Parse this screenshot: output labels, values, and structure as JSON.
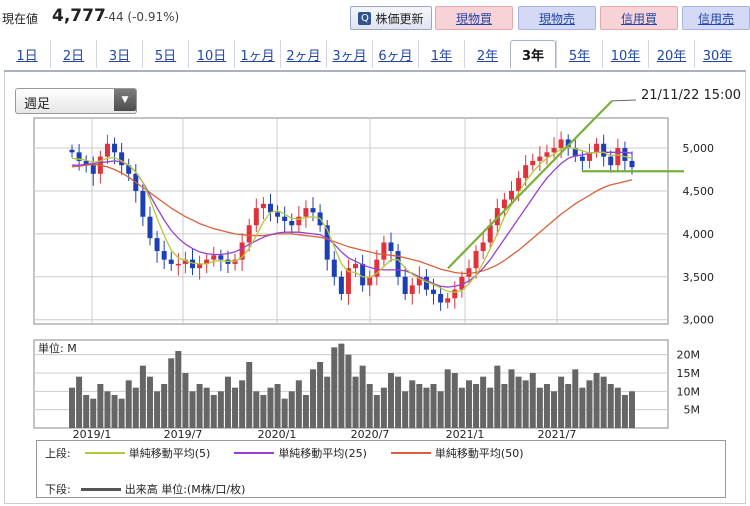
{
  "quote": {
    "label": "現在値",
    "price": "4,777",
    "change": "-44 (-0.91%)"
  },
  "toolbar": {
    "refresh": "株価更新",
    "buy1": "現物買",
    "sell1": "現物売",
    "buy2": "信用買",
    "sell2": "信用売"
  },
  "tabs": [
    "1日",
    "2日",
    "3日",
    "5日",
    "10日",
    "1ヶ月",
    "2ヶ月",
    "3ヶ月",
    "6ヶ月",
    "1年",
    "2年",
    "3年",
    "5年",
    "10年",
    "20年",
    "30年"
  ],
  "active_tab": "3年",
  "period_select": {
    "value": "週足"
  },
  "timestamp": "21/11/22 15:00",
  "colors": {
    "up": "#e0323b",
    "down": "#1d3fb5",
    "ma5": "#b6c83a",
    "ma25": "#9a3fd1",
    "ma50": "#d9603a",
    "trend": "#78b03c",
    "volume": "#666666"
  },
  "chart_data": [
    {
      "type": "candlestick",
      "x_ticks": [
        "2019/1",
        "2019/7",
        "2020/1",
        "2020/7",
        "2021/1",
        "2021/7"
      ],
      "y_ticks": [
        "3,000",
        "3,500",
        "4,000",
        "4,500",
        "5,000"
      ],
      "ylim": [
        2950,
        5350
      ],
      "grid": true,
      "close_series": [
        4950,
        4850,
        4800,
        4700,
        4900,
        5050,
        4950,
        4800,
        4700,
        4500,
        4200,
        3950,
        3800,
        3700,
        3650,
        3650,
        3700,
        3600,
        3650,
        3700,
        3750,
        3700,
        3650,
        3700,
        3900,
        4100,
        4300,
        4350,
        4250,
        4200,
        4150,
        4100,
        4200,
        4300,
        4250,
        4100,
        3700,
        3500,
        3300,
        3600,
        3650,
        3400,
        3500,
        3700,
        3900,
        3800,
        3500,
        3300,
        3400,
        3500,
        3350,
        3300,
        3200,
        3250,
        3350,
        3500,
        3600,
        3800,
        3900,
        4100,
        4300,
        4400,
        4500,
        4650,
        4800,
        4850,
        4900,
        4950,
        5000,
        5100,
        5000,
        4900,
        4850,
        4950,
        5050,
        4900,
        4800,
        5000,
        4850,
        4777
      ],
      "ma5": [
        4880,
        4870,
        4860,
        4830,
        4850,
        4880,
        4890,
        4850,
        4800,
        4720,
        4600,
        4400,
        4180,
        3980,
        3810,
        3720,
        3690,
        3660,
        3650,
        3650,
        3680,
        3690,
        3680,
        3680,
        3730,
        3830,
        3980,
        4140,
        4250,
        4270,
        4230,
        4180,
        4170,
        4190,
        4200,
        4180,
        4050,
        3850,
        3650,
        3560,
        3550,
        3500,
        3490,
        3540,
        3620,
        3700,
        3700,
        3600,
        3530,
        3480,
        3440,
        3410,
        3370,
        3330,
        3320,
        3340,
        3420,
        3520,
        3660,
        3830,
        4000,
        4200,
        4340,
        4480,
        4610,
        4720,
        4810,
        4880,
        4930,
        4990,
        5010,
        4990,
        4970,
        4940,
        4950,
        4950,
        4910,
        4920,
        4900,
        4880
      ],
      "ma25": [
        4800,
        4800,
        4810,
        4820,
        4830,
        4840,
        4850,
        4840,
        4800,
        4720,
        4600,
        4450,
        4300,
        4160,
        4040,
        3950,
        3880,
        3830,
        3790,
        3770,
        3760,
        3760,
        3770,
        3790,
        3830,
        3880,
        3920,
        3960,
        3990,
        4010,
        4020,
        4020,
        4020,
        4010,
        4000,
        3990,
        3950,
        3880,
        3790,
        3720,
        3680,
        3640,
        3610,
        3590,
        3580,
        3580,
        3580,
        3570,
        3540,
        3500,
        3460,
        3420,
        3390,
        3380,
        3390,
        3410,
        3450,
        3520,
        3600,
        3700,
        3820,
        3940,
        4060,
        4180,
        4300,
        4420,
        4540,
        4650,
        4740,
        4820,
        4880,
        4910,
        4920,
        4940,
        4950,
        4950,
        4950,
        4950,
        4950,
        4940
      ],
      "ma50": [
        4780,
        4790,
        4800,
        4810,
        4800,
        4780,
        4750,
        4710,
        4660,
        4600,
        4540,
        4480,
        4420,
        4360,
        4300,
        4250,
        4200,
        4160,
        4120,
        4090,
        4060,
        4040,
        4020,
        4000,
        3990,
        3980,
        3980,
        3980,
        3990,
        4000,
        4000,
        4000,
        3990,
        3980,
        3970,
        3960,
        3940,
        3910,
        3880,
        3850,
        3830,
        3810,
        3790,
        3770,
        3760,
        3750,
        3740,
        3720,
        3700,
        3680,
        3650,
        3620,
        3590,
        3570,
        3550,
        3540,
        3540,
        3550,
        3570,
        3600,
        3640,
        3690,
        3750,
        3810,
        3880,
        3950,
        4020,
        4090,
        4160,
        4230,
        4290,
        4350,
        4400,
        4450,
        4500,
        4540,
        4570,
        4590,
        4610,
        4630
      ],
      "volume_ticks": [
        "5M",
        "10M",
        "15M",
        "20M"
      ],
      "volume_unit_label": "単位: M",
      "volume": [
        11,
        14,
        9,
        8,
        12,
        10,
        9,
        8,
        13,
        11,
        17,
        14,
        10,
        12,
        19,
        21,
        15,
        10,
        12,
        11,
        9,
        10,
        14,
        11,
        13,
        18,
        10,
        9,
        11,
        12,
        8,
        10,
        13,
        9,
        16,
        18,
        14,
        22,
        23,
        20,
        14,
        17,
        12,
        9,
        11,
        15,
        14,
        10,
        13,
        12,
        11,
        12,
        10,
        16,
        15,
        11,
        13,
        12,
        14,
        11,
        17,
        12,
        16,
        14,
        13,
        15,
        11,
        12,
        10,
        14,
        12,
        16,
        11,
        13,
        15,
        14,
        12,
        11,
        9,
        10
      ]
    }
  ],
  "legend": {
    "upper_label": "上段:",
    "ma5_label": "単純移動平均(5)",
    "ma25_label": "単純移動平均(25)",
    "ma50_label": "単純移動平均(50)",
    "lower_label": "下段:",
    "volume_label": "出来高 単位:(M株/口/枚)"
  }
}
